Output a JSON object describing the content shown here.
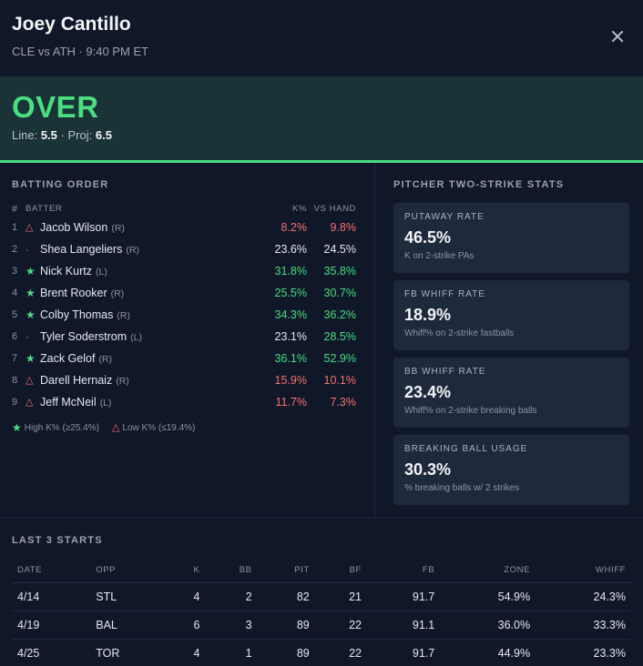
{
  "header": {
    "title": "Joey Cantillo",
    "subtitle": "CLE vs ATH · 9:40 PM ET"
  },
  "verdict": {
    "pick": "OVER",
    "line_label": "Line:",
    "line_value": "5.5",
    "separator": "·",
    "proj_label": "Proj:",
    "proj_value": "6.5",
    "accent_color": "#4ade80"
  },
  "batting_order": {
    "title": "BATTING ORDER",
    "headers": {
      "num": "#",
      "batter": "BATTER",
      "k_pct": "K%",
      "vs_hand": "VS HAND"
    },
    "rows": [
      {
        "num": "1",
        "icon": "warning-icon",
        "name": "Jacob Wilson",
        "hand": "(R)",
        "k": "8.2%",
        "vs": "9.8%",
        "k_color": "red",
        "vs_color": "red"
      },
      {
        "num": "2",
        "icon": "dot-icon",
        "name": "Shea Langeliers",
        "hand": "(R)",
        "k": "23.6%",
        "vs": "24.5%",
        "k_color": "white",
        "vs_color": "white"
      },
      {
        "num": "3",
        "icon": "star-icon",
        "name": "Nick Kurtz",
        "hand": "(L)",
        "k": "31.8%",
        "vs": "35.8%",
        "k_color": "green",
        "vs_color": "green"
      },
      {
        "num": "4",
        "icon": "star-icon",
        "name": "Brent Rooker",
        "hand": "(R)",
        "k": "25.5%",
        "vs": "30.7%",
        "k_color": "green",
        "vs_color": "green"
      },
      {
        "num": "5",
        "icon": "star-icon",
        "name": "Colby Thomas",
        "hand": "(R)",
        "k": "34.3%",
        "vs": "36.2%",
        "k_color": "green",
        "vs_color": "green"
      },
      {
        "num": "6",
        "icon": "dot-icon",
        "name": "Tyler Soderstrom",
        "hand": "(L)",
        "k": "23.1%",
        "vs": "28.5%",
        "k_color": "white",
        "vs_color": "green"
      },
      {
        "num": "7",
        "icon": "star-icon",
        "name": "Zack Gelof",
        "hand": "(R)",
        "k": "36.1%",
        "vs": "52.9%",
        "k_color": "green",
        "vs_color": "green"
      },
      {
        "num": "8",
        "icon": "warning-icon",
        "name": "Darell Hernaiz",
        "hand": "(R)",
        "k": "15.9%",
        "vs": "10.1%",
        "k_color": "red",
        "vs_color": "red"
      },
      {
        "num": "9",
        "icon": "warning-icon",
        "name": "Jeff McNeil",
        "hand": "(L)",
        "k": "11.7%",
        "vs": "7.3%",
        "k_color": "red",
        "vs_color": "red"
      }
    ],
    "legend": {
      "high": "High K% (≥25.4%)",
      "low": "Low K% (≤19.4%)"
    }
  },
  "pitcher_stats": {
    "title": "PITCHER TWO-STRIKE STATS",
    "cards": [
      {
        "label": "PUTAWAY RATE",
        "value": "46.5%",
        "desc": "K on 2-strike PAs"
      },
      {
        "label": "FB WHIFF RATE",
        "value": "18.9%",
        "desc": "Whiff% on 2-strike fastballs"
      },
      {
        "label": "BB WHIFF RATE",
        "value": "23.4%",
        "desc": "Whiff% on 2-strike breaking balls"
      },
      {
        "label": "BREAKING BALL USAGE",
        "value": "30.3%",
        "desc": "% breaking balls w/ 2 strikes"
      }
    ]
  },
  "last_starts": {
    "title": "LAST 3 STARTS",
    "headers": [
      "DATE",
      "OPP",
      "K",
      "BB",
      "PIT",
      "BF",
      "FB",
      "ZONE",
      "WHIFF"
    ],
    "rows": [
      [
        "4/14",
        "STL",
        "4",
        "2",
        "82",
        "21",
        "91.7",
        "54.9%",
        "24.3%"
      ],
      [
        "4/19",
        "BAL",
        "6",
        "3",
        "89",
        "22",
        "91.1",
        "36.0%",
        "33.3%"
      ],
      [
        "4/25",
        "TOR",
        "4",
        "1",
        "89",
        "22",
        "91.7",
        "44.9%",
        "23.3%"
      ]
    ]
  }
}
